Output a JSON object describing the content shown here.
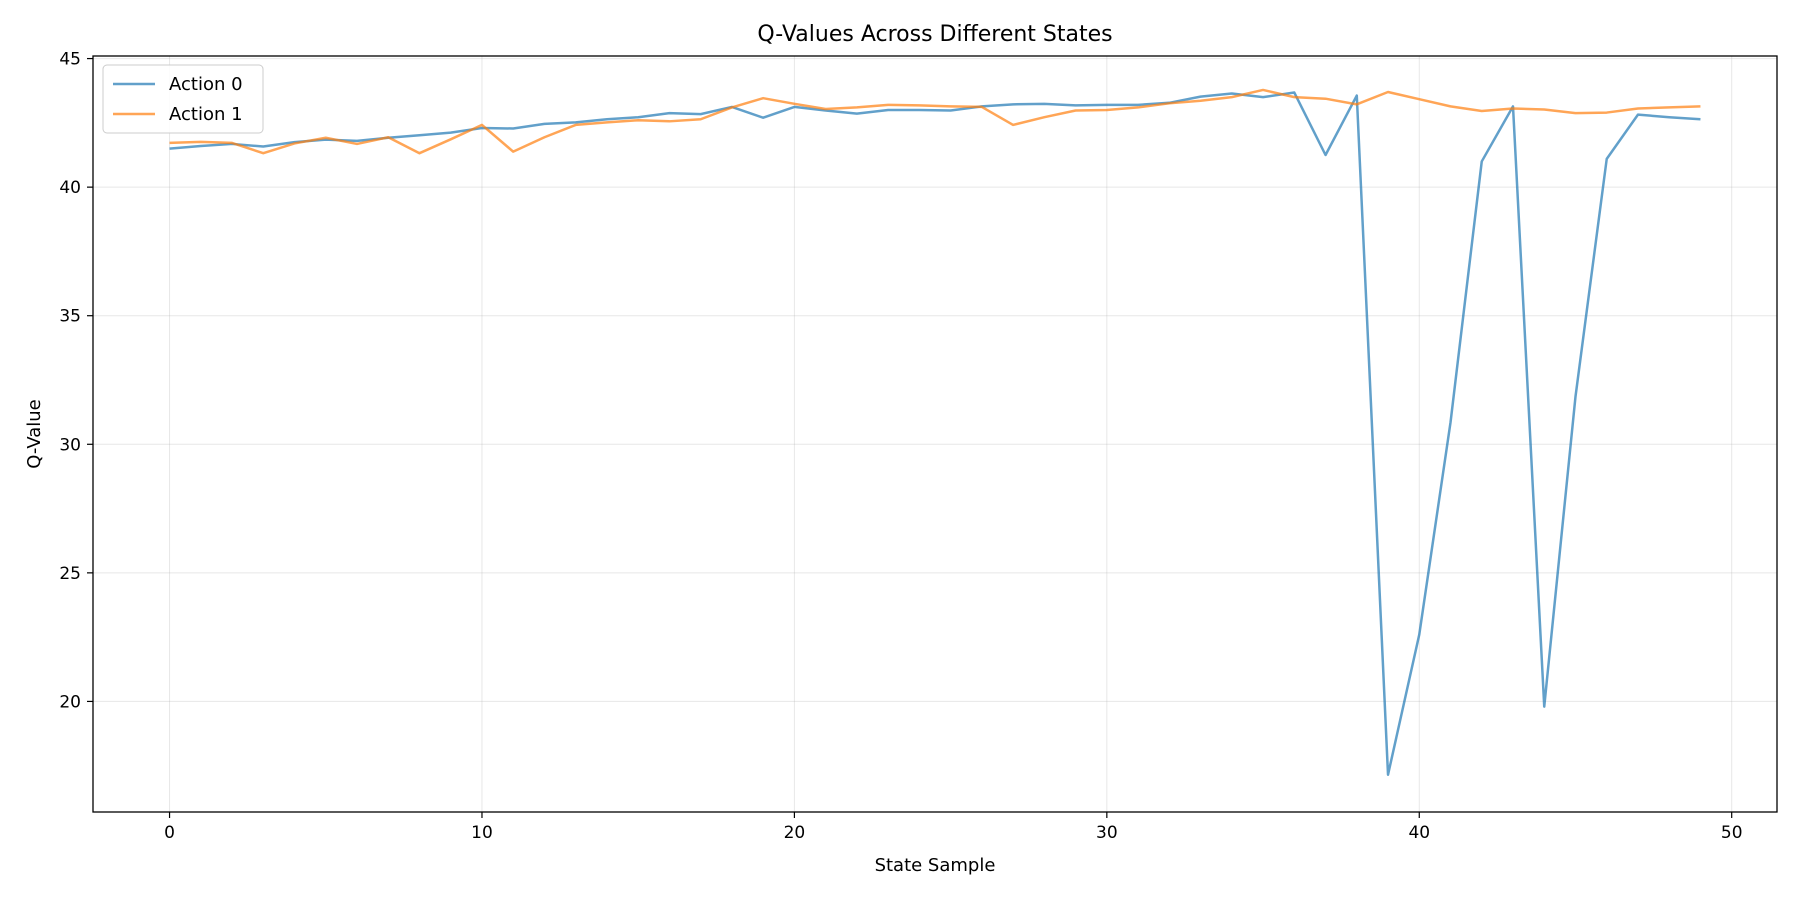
{
  "chart_data": {
    "type": "line",
    "title": "Q-Values Across Different States",
    "xlabel": "State Sample",
    "ylabel": "Q-Value",
    "xlim": [
      -2.45,
      51.45
    ],
    "ylim": [
      15.7,
      45.1
    ],
    "xticks": [
      0,
      10,
      20,
      30,
      40,
      50
    ],
    "yticks": [
      20,
      25,
      30,
      35,
      40,
      45
    ],
    "grid": true,
    "legend_position": "top-left",
    "x": [
      0,
      1,
      2,
      3,
      4,
      5,
      6,
      7,
      8,
      9,
      10,
      11,
      12,
      13,
      14,
      15,
      16,
      17,
      18,
      19,
      20,
      21,
      22,
      23,
      24,
      25,
      26,
      27,
      28,
      29,
      30,
      31,
      32,
      33,
      34,
      35,
      36,
      37,
      38,
      39,
      40,
      41,
      42,
      43,
      44,
      45,
      46,
      47,
      48,
      49
    ],
    "series": [
      {
        "name": "Action 0",
        "color": "#1f77b4",
        "values": [
          41.5,
          41.6,
          41.68,
          41.58,
          41.75,
          41.85,
          41.8,
          41.92,
          42.02,
          42.12,
          42.3,
          42.28,
          42.46,
          42.52,
          42.64,
          42.72,
          42.88,
          42.84,
          43.12,
          42.7,
          43.12,
          42.98,
          42.86,
          43.0,
          43.0,
          42.98,
          43.14,
          43.22,
          43.24,
          43.18,
          43.2,
          43.2,
          43.28,
          43.52,
          43.64,
          43.5,
          43.68,
          41.25,
          43.56,
          17.15,
          22.6,
          30.85,
          41.0,
          43.14,
          19.8,
          31.85,
          41.1,
          42.82,
          42.72,
          42.64
        ]
      },
      {
        "name": "Action 1",
        "color": "#ff7f0e",
        "values": [
          41.72,
          41.76,
          41.72,
          41.32,
          41.7,
          41.92,
          41.68,
          41.94,
          41.32,
          41.86,
          42.42,
          41.38,
          41.94,
          42.42,
          42.52,
          42.6,
          42.56,
          42.64,
          43.1,
          43.46,
          43.24,
          43.04,
          43.1,
          43.2,
          43.18,
          43.14,
          43.12,
          42.42,
          42.72,
          42.98,
          43.0,
          43.1,
          43.26,
          43.36,
          43.5,
          43.78,
          43.5,
          43.44,
          43.22,
          43.7,
          43.42,
          43.14,
          42.96,
          43.06,
          43.02,
          42.88,
          42.9,
          43.06,
          43.1,
          43.14
        ]
      }
    ]
  }
}
